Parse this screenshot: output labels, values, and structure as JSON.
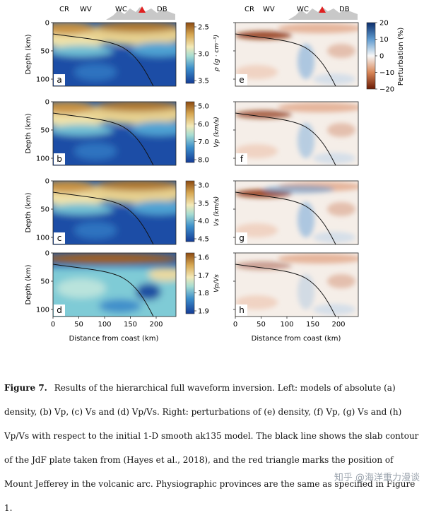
{
  "provinces": {
    "cr": "CR",
    "wv": "WV",
    "wc": "WC",
    "db": "DB"
  },
  "axes": {
    "depth_label": "Depth (km)",
    "distance_label": "Distance from coast (km)",
    "depth_ticks": [
      "0",
      "50",
      "100"
    ],
    "distance_ticks": [
      "0",
      "50",
      "100",
      "150",
      "200"
    ]
  },
  "left_panels": [
    {
      "letter": "a",
      "scale_label": "ρ (g · cm⁻³)",
      "ticks": [
        "2.5",
        "3.0",
        "3.5"
      ]
    },
    {
      "letter": "b",
      "scale_label": "Vp (km/s)",
      "ticks": [
        "5.0",
        "6.0",
        "7.0",
        "8.0"
      ]
    },
    {
      "letter": "c",
      "scale_label": "Vs (km/s)",
      "ticks": [
        "3.0",
        "3.5",
        "4.0",
        "4.5"
      ]
    },
    {
      "letter": "d",
      "scale_label": "Vp/Vs",
      "ticks": [
        "1.6",
        "1.7",
        "1.8",
        "1.9"
      ]
    }
  ],
  "right_panels": [
    {
      "letter": "e"
    },
    {
      "letter": "f"
    },
    {
      "letter": "g"
    },
    {
      "letter": "h"
    }
  ],
  "perturbation": {
    "label": "Perturbation (%)",
    "ticks": [
      "20",
      "10",
      "0",
      "−10",
      "−20"
    ]
  },
  "caption": {
    "figure_label": "Figure 7.",
    "text": "Results of the hierarchical full waveform inversion. Left: models of absolute (a) density, (b) Vp, (c) Vs and (d) Vp/Vs. Right: perturbations of (e) density, (f) Vp, (g) Vs and (h) Vp/Vs with respect to the initial 1-D smooth ak135 model. The black line shows the slab contour of the JdF plate taken from (Hayes et al., 2018), and the red triangle marks the position of Mount Jefferey in the volcanic arc. Physiographic provinces are the same as specified in Figure 1."
  },
  "watermark": "知乎 @海洋重力漫谈",
  "colors": {
    "volcano": "#e02020",
    "topography": "#c8c8c8",
    "slab": "#111111"
  }
}
